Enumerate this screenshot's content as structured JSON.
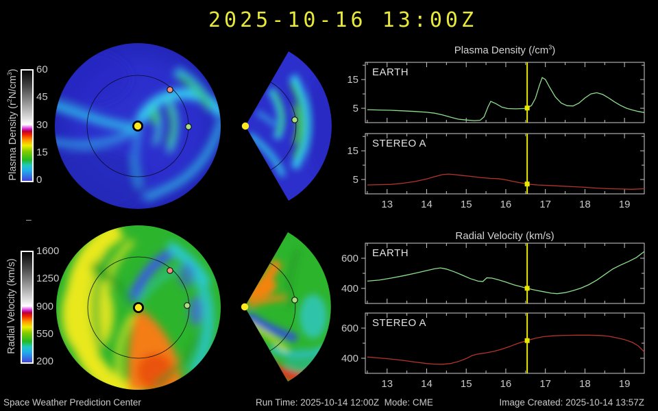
{
  "title": "2025-10-16 13:00Z",
  "footer": {
    "left": "Space Weather Prediction Center",
    "run_time": "Run Time: 2025-10-14 12:00Z  Mode: CME",
    "image_created": "Image Created: 2025-10-14 13:57Z"
  },
  "misc_dash": "–",
  "colorbars": [
    {
      "name": "plasma-density",
      "label_pre": "Plasma Density (r",
      "label_sup1": "2",
      "label_mid": "N/cm",
      "label_sup2": "3",
      "label_post": ")",
      "ticks": [
        0,
        15,
        30,
        45,
        60
      ]
    },
    {
      "name": "radial-velocity",
      "label": "Radial Velocity (km/s)",
      "ticks": [
        200,
        550,
        900,
        1250,
        1600
      ]
    }
  ],
  "panel_titles": {
    "density": {
      "pre": "Plasma Density (/cm",
      "sup": "3",
      "post": ")"
    },
    "velocity": "Radial Velocity (km/s)"
  },
  "markers": {
    "sun_color": "#ffe81e",
    "earth_color": "#aade7f",
    "stereo_a_color": "#ef8f7d",
    "current_time_color": "#e8e800"
  },
  "chart_data": [
    {
      "type": "line",
      "title": "Plasma Density (/cm3)",
      "xlim": [
        12.45,
        19.5
      ],
      "ylim": [
        0,
        21
      ],
      "xticks": [
        13,
        14,
        15,
        16,
        17,
        18,
        19
      ],
      "yticks": [
        5,
        15
      ],
      "grid": false,
      "current_time_line": 16.54,
      "subplots": [
        {
          "label": "EARTH",
          "color": "#8ee08e",
          "points": [
            [
              12.5,
              4.5
            ],
            [
              12.8,
              4.4
            ],
            [
              13.1,
              4.3
            ],
            [
              13.4,
              4.1
            ],
            [
              13.7,
              3.9
            ],
            [
              14.0,
              3.6
            ],
            [
              14.2,
              3.3
            ],
            [
              14.4,
              2.7
            ],
            [
              14.6,
              1.9
            ],
            [
              14.8,
              1.2
            ],
            [
              15.0,
              0.9
            ],
            [
              15.2,
              0.7
            ],
            [
              15.35,
              0.8
            ],
            [
              15.45,
              2.0
            ],
            [
              15.55,
              5.5
            ],
            [
              15.62,
              7.4
            ],
            [
              15.75,
              6.6
            ],
            [
              15.9,
              5.4
            ],
            [
              16.05,
              4.9
            ],
            [
              16.25,
              4.8
            ],
            [
              16.45,
              4.9
            ],
            [
              16.55,
              5.1
            ],
            [
              16.65,
              6.0
            ],
            [
              16.75,
              8.5
            ],
            [
              16.85,
              13.0
            ],
            [
              16.92,
              15.7
            ],
            [
              17.0,
              15.0
            ],
            [
              17.1,
              12.5
            ],
            [
              17.25,
              9.0
            ],
            [
              17.4,
              6.8
            ],
            [
              17.55,
              5.9
            ],
            [
              17.7,
              5.8
            ],
            [
              17.85,
              6.8
            ],
            [
              18.0,
              8.6
            ],
            [
              18.15,
              10.0
            ],
            [
              18.3,
              10.4
            ],
            [
              18.45,
              9.8
            ],
            [
              18.6,
              8.6
            ],
            [
              18.75,
              7.2
            ],
            [
              18.9,
              6.0
            ],
            [
              19.05,
              5.0
            ],
            [
              19.2,
              4.4
            ],
            [
              19.35,
              3.9
            ],
            [
              19.5,
              3.5
            ]
          ]
        },
        {
          "label": "STEREO A",
          "color": "#b5342c",
          "points": [
            [
              12.5,
              3.1
            ],
            [
              12.8,
              3.2
            ],
            [
              13.1,
              3.3
            ],
            [
              13.4,
              3.7
            ],
            [
              13.7,
              4.3
            ],
            [
              14.0,
              5.2
            ],
            [
              14.2,
              6.0
            ],
            [
              14.4,
              6.7
            ],
            [
              14.55,
              6.9
            ],
            [
              14.7,
              6.7
            ],
            [
              14.9,
              6.4
            ],
            [
              15.1,
              6.1
            ],
            [
              15.35,
              5.7
            ],
            [
              15.6,
              5.4
            ],
            [
              15.8,
              5.3
            ],
            [
              16.0,
              4.9
            ],
            [
              16.2,
              4.3
            ],
            [
              16.4,
              3.8
            ],
            [
              16.55,
              3.4
            ],
            [
              16.8,
              3.1
            ],
            [
              17.1,
              2.9
            ],
            [
              17.4,
              2.7
            ],
            [
              17.7,
              2.5
            ],
            [
              18.0,
              2.3
            ],
            [
              18.3,
              2.0
            ],
            [
              18.6,
              1.8
            ],
            [
              18.9,
              1.7
            ],
            [
              19.2,
              1.6
            ],
            [
              19.5,
              1.8
            ]
          ]
        }
      ]
    },
    {
      "type": "line",
      "title": "Radial Velocity (km/s)",
      "xlim": [
        12.45,
        19.5
      ],
      "ylim": [
        300,
        700
      ],
      "xticks": [
        13,
        14,
        15,
        16,
        17,
        18,
        19
      ],
      "yticks": [
        400,
        600
      ],
      "grid": false,
      "current_time_line": 16.54,
      "subplots": [
        {
          "label": "EARTH",
          "color": "#8ee08e",
          "points": [
            [
              12.5,
              448
            ],
            [
              12.8,
              455
            ],
            [
              13.1,
              468
            ],
            [
              13.4,
              483
            ],
            [
              13.7,
              500
            ],
            [
              14.0,
              518
            ],
            [
              14.2,
              530
            ],
            [
              14.35,
              536
            ],
            [
              14.5,
              528
            ],
            [
              14.7,
              510
            ],
            [
              14.9,
              488
            ],
            [
              15.1,
              465
            ],
            [
              15.3,
              448
            ],
            [
              15.42,
              446
            ],
            [
              15.52,
              470
            ],
            [
              15.65,
              468
            ],
            [
              15.8,
              458
            ],
            [
              16.0,
              442
            ],
            [
              16.2,
              424
            ],
            [
              16.4,
              410
            ],
            [
              16.55,
              400
            ],
            [
              16.75,
              388
            ],
            [
              16.95,
              378
            ],
            [
              17.15,
              368
            ],
            [
              17.3,
              365
            ],
            [
              17.5,
              372
            ],
            [
              17.7,
              385
            ],
            [
              17.9,
              402
            ],
            [
              18.1,
              425
            ],
            [
              18.3,
              455
            ],
            [
              18.5,
              492
            ],
            [
              18.7,
              528
            ],
            [
              18.9,
              555
            ],
            [
              19.1,
              578
            ],
            [
              19.3,
              605
            ],
            [
              19.5,
              645
            ]
          ]
        },
        {
          "label": "STEREO A",
          "color": "#b5342c",
          "points": [
            [
              12.5,
              408
            ],
            [
              12.8,
              402
            ],
            [
              13.1,
              395
            ],
            [
              13.4,
              386
            ],
            [
              13.7,
              375
            ],
            [
              14.0,
              365
            ],
            [
              14.2,
              361
            ],
            [
              14.4,
              360
            ],
            [
              14.6,
              365
            ],
            [
              14.8,
              378
            ],
            [
              15.0,
              398
            ],
            [
              15.15,
              418
            ],
            [
              15.3,
              428
            ],
            [
              15.5,
              436
            ],
            [
              15.7,
              446
            ],
            [
              15.9,
              460
            ],
            [
              16.1,
              478
            ],
            [
              16.3,
              498
            ],
            [
              16.55,
              518
            ],
            [
              16.75,
              533
            ],
            [
              16.95,
              543
            ],
            [
              17.2,
              549
            ],
            [
              17.5,
              552
            ],
            [
              17.8,
              553
            ],
            [
              18.1,
              553
            ],
            [
              18.4,
              551
            ],
            [
              18.6,
              546
            ],
            [
              18.8,
              536
            ],
            [
              19.0,
              524
            ],
            [
              19.2,
              505
            ],
            [
              19.35,
              482
            ],
            [
              19.5,
              442
            ]
          ]
        }
      ]
    }
  ]
}
